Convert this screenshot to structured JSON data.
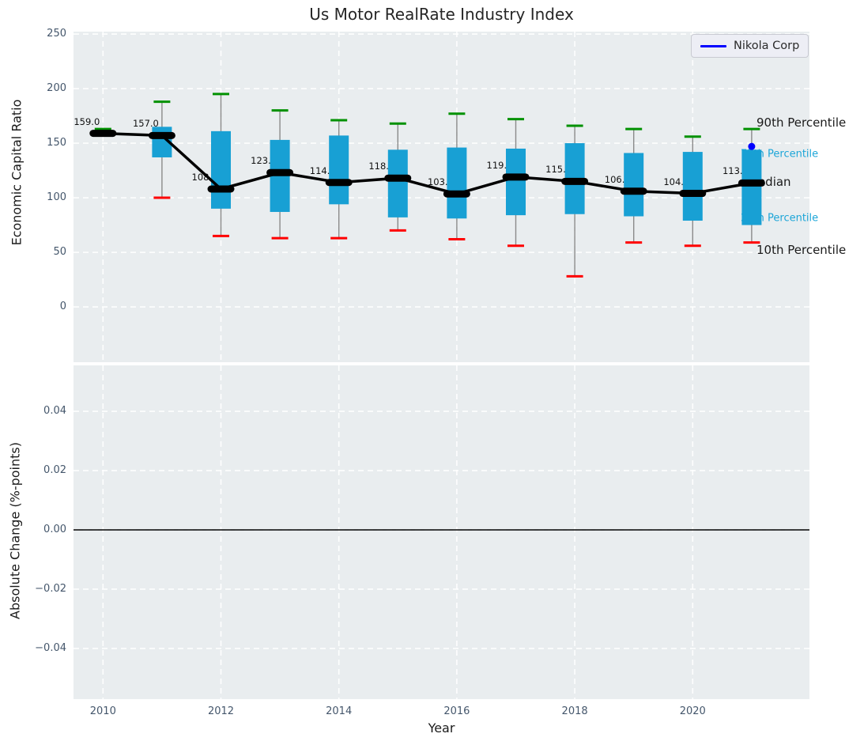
{
  "title": "Us Motor RealRate Industry Index",
  "legend": {
    "label": "Nikola Corp",
    "line_color": "#0000ff"
  },
  "colors": {
    "plot_bg": "#e9edef",
    "grid": "#ffffff",
    "box_fill": "#18a0d4",
    "whisker": "#8a8a8a",
    "cap_top": "#009100",
    "cap_bottom": "#ff0000",
    "median": "#000000",
    "company_point": "#0000ff",
    "cyan_text": "#1da6d8",
    "tick_text": "#44566b",
    "title_text": "#262626"
  },
  "chart_data": [
    {
      "type": "box",
      "ylabel": "Economic Capital Ratio",
      "xlim": [
        2009.5,
        2021.98
      ],
      "ylim": [
        -50.7,
        252.2
      ],
      "grid": true,
      "legend_position": "upper right",
      "yticks": [
        {
          "value": 250,
          "label": "250"
        },
        {
          "value": 200,
          "label": "200"
        },
        {
          "value": 150,
          "label": "150"
        },
        {
          "value": 100,
          "label": "100"
        },
        {
          "value": 50,
          "label": "50"
        },
        {
          "value": 0,
          "label": "0"
        }
      ],
      "xticks": [
        {
          "value": 2010,
          "label": "2010"
        },
        {
          "value": 2012,
          "label": "2012"
        },
        {
          "value": 2014,
          "label": "2014"
        },
        {
          "value": 2016,
          "label": "2016"
        },
        {
          "value": 2018,
          "label": "2018"
        },
        {
          "value": 2020,
          "label": "2020"
        }
      ],
      "boxes": [
        {
          "year": 2010,
          "label": "159.0",
          "median": 159.0,
          "q1": 158.0,
          "q3": 160.5,
          "p10": 158.5,
          "p90": 163.0
        },
        {
          "year": 2011,
          "label": "157.0",
          "median": 157.0,
          "q1": 137.0,
          "q3": 165.0,
          "p10": 100.0,
          "p90": 188.0
        },
        {
          "year": 2012,
          "label": "108.0",
          "median": 108.0,
          "q1": 90.0,
          "q3": 161.0,
          "p10": 65.0,
          "p90": 195.0
        },
        {
          "year": 2013,
          "label": "123.0",
          "median": 123.0,
          "q1": 87.0,
          "q3": 153.0,
          "p10": 63.0,
          "p90": 180.0
        },
        {
          "year": 2014,
          "label": "114.0",
          "median": 114.0,
          "q1": 94.0,
          "q3": 157.0,
          "p10": 63.0,
          "p90": 171.0
        },
        {
          "year": 2015,
          "label": "118.0",
          "median": 118.0,
          "q1": 82.0,
          "q3": 144.0,
          "p10": 70.0,
          "p90": 168.0
        },
        {
          "year": 2016,
          "label": "103.5",
          "median": 103.5,
          "q1": 81.0,
          "q3": 146.0,
          "p10": 62.0,
          "p90": 177.0
        },
        {
          "year": 2017,
          "label": "119.0",
          "median": 119.0,
          "q1": 84.0,
          "q3": 145.0,
          "p10": 56.0,
          "p90": 172.0
        },
        {
          "year": 2018,
          "label": "115.0",
          "median": 115.0,
          "q1": 85.0,
          "q3": 150.0,
          "p10": 28.0,
          "p90": 166.0
        },
        {
          "year": 2019,
          "label": "106.0",
          "median": 106.0,
          "q1": 83.0,
          "q3": 141.0,
          "p10": 59.0,
          "p90": 163.0
        },
        {
          "year": 2020,
          "label": "104.0",
          "median": 104.0,
          "q1": 79.0,
          "q3": 142.0,
          "p10": 56.0,
          "p90": 156.0
        },
        {
          "year": 2021,
          "label": "113.5",
          "median": 113.5,
          "q1": 75.0,
          "q3": 144.0,
          "p10": 59.0,
          "p90": 163.0
        }
      ],
      "company_point": {
        "name": "Nikola Corp",
        "year": 2021,
        "value": 147,
        "color": "#0000ff"
      },
      "annotations": [
        {
          "text": "90th Percentile",
          "color": "#1a1a1a",
          "size": 15,
          "value": 169,
          "x": 957
        },
        {
          "text": "75th Percentile",
          "color": "#1da6d8",
          "size": 13,
          "value": 140,
          "x": 937
        },
        {
          "text": "Median",
          "color": "#1a1a1a",
          "size": 15,
          "value": 114.5,
          "x": 946
        },
        {
          "text": "25th Percentile",
          "color": "#1da6d8",
          "size": 13,
          "value": 81,
          "x": 937
        },
        {
          "text": "10th Percentile",
          "color": "#1a1a1a",
          "size": 15,
          "value": 52,
          "x": 957
        }
      ]
    },
    {
      "type": "line",
      "ylabel": "Absolute Change (%-points)",
      "xlabel": "Year",
      "xlim": [
        2009.5,
        2021.98
      ],
      "ylim": [
        -0.0571,
        0.0555
      ],
      "grid": true,
      "zero_line": true,
      "series": [],
      "yticks": [
        {
          "value": 0.04,
          "label": "0.04"
        },
        {
          "value": 0.02,
          "label": "0.02"
        },
        {
          "value": 0.0,
          "label": "0.00"
        },
        {
          "value": -0.02,
          "label": "−0.02"
        },
        {
          "value": -0.04,
          "label": "−0.04"
        }
      ],
      "xticks": [
        {
          "value": 2010,
          "label": "2010"
        },
        {
          "value": 2012,
          "label": "2012"
        },
        {
          "value": 2014,
          "label": "2014"
        },
        {
          "value": 2016,
          "label": "2016"
        },
        {
          "value": 2018,
          "label": "2018"
        },
        {
          "value": 2020,
          "label": "2020"
        }
      ]
    }
  ]
}
